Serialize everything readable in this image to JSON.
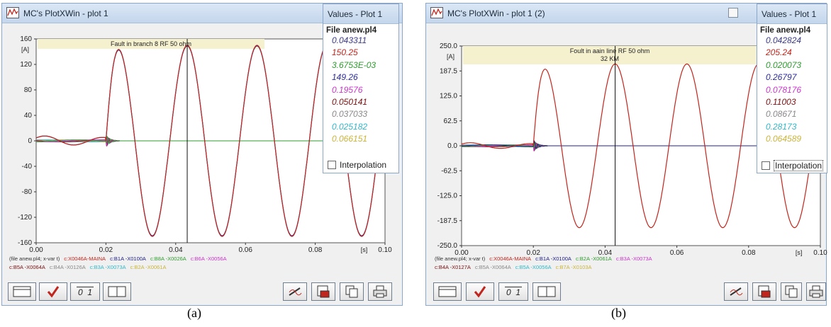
{
  "captions": [
    "(a)",
    "(b)"
  ],
  "colors": {
    "red": "#c0261d",
    "navy": "#20208a",
    "green": "#2f9c2f",
    "purple": "#2b2b9b",
    "magenta": "#cc33cc",
    "maroon": "#7a1010",
    "gray": "#888888",
    "cyan": "#2fb7c8",
    "olive": "#c9b43a"
  },
  "icons": {
    "app": "plot-app-icon",
    "win_button": "restore-box-icon",
    "toolbar": [
      "frame-icon",
      "checkmark-icon",
      "scale-01-icon",
      "split-pane-icon",
      "pen-icon",
      "save-icon",
      "copy-icon",
      "print-icon"
    ]
  },
  "toolbar": {
    "scale_label": "0  1"
  },
  "plots": [
    {
      "window_title": "MC's PlotXWin - plot 1",
      "values_panel": {
        "title": "Values - Plot 1",
        "file": "File anew.pl4",
        "interpolation_label": "Interpolation",
        "values": [
          {
            "text": "0.043311",
            "color": "#3a3a8a"
          },
          {
            "text": "150.25",
            "color": "#c0261d"
          },
          {
            "text": "3.6753E-03",
            "color": "#2f9c2f"
          },
          {
            "text": "149.26",
            "color": "#2b2b9b"
          },
          {
            "text": "0.19576",
            "color": "#cc33cc"
          },
          {
            "text": "0.050141",
            "color": "#7a1010"
          },
          {
            "text": "0.037033",
            "color": "#888888"
          },
          {
            "text": "0.025182",
            "color": "#2fb7c8"
          },
          {
            "text": "0.066151",
            "color": "#c9b43a"
          }
        ]
      },
      "legend_lines": [
        [
          {
            "text": "(file anew.pl4; x-var t)",
            "color": "#333333"
          },
          {
            "text": "c:X0046A-MAINA",
            "color": "#c0261d"
          },
          {
            "text": "c:B1A  -X0100A",
            "color": "#20208a"
          },
          {
            "text": "c:B8A  -X0026A",
            "color": "#2f9c2f"
          },
          {
            "text": "c:B6A  -X0056A",
            "color": "#cc33cc"
          }
        ],
        [
          {
            "text": "c:B5A  -X0064A",
            "color": "#7a1010"
          },
          {
            "text": "c:B4A  -X0126A",
            "color": "#888888"
          },
          {
            "text": "c:B3A  -X0073A",
            "color": "#2fb7c8"
          },
          {
            "text": "c:B2A  -X0061A",
            "color": "#c9b43a"
          }
        ]
      ]
    },
    {
      "window_title": "MC's PlotXWin - plot 1 (2)",
      "values_panel": {
        "title": "Values - Plot 1",
        "file": "File anew.pl4",
        "interpolation_label": "Interpolation",
        "values": [
          {
            "text": "0.042824",
            "color": "#3a3a8a"
          },
          {
            "text": "205.24",
            "color": "#c0261d"
          },
          {
            "text": "0.020073",
            "color": "#2f9c2f"
          },
          {
            "text": "0.26797",
            "color": "#2b2b9b"
          },
          {
            "text": "0.078176",
            "color": "#cc33cc"
          },
          {
            "text": "0.11003",
            "color": "#7a1010"
          },
          {
            "text": "0.08671",
            "color": "#888888"
          },
          {
            "text": "0.28173",
            "color": "#2fb7c8"
          },
          {
            "text": "0.064589",
            "color": "#c9b43a"
          }
        ]
      },
      "legend_lines": [
        [
          {
            "text": "(file anew.pl4; x-var t)",
            "color": "#333333"
          },
          {
            "text": "c:X0046A-MAINA",
            "color": "#c0261d"
          },
          {
            "text": "c:B1A  -X0100A",
            "color": "#20208a"
          },
          {
            "text": "c:B2A  -X0061A",
            "color": "#2f9c2f"
          },
          {
            "text": "c:B3A  -X0073A",
            "color": "#cc33cc"
          }
        ],
        [
          {
            "text": "c:B4A  -X0127A",
            "color": "#7a1010"
          },
          {
            "text": "c:B5A  -X0064A",
            "color": "#888888"
          },
          {
            "text": "c:B5A  -X0056A",
            "color": "#2fb7c8"
          },
          {
            "text": "c:B7A  -X0103A",
            "color": "#c9b43a"
          }
        ]
      ]
    }
  ],
  "chart_data": [
    {
      "type": "line",
      "title": "Fault in branch 8 RF 50 ohm",
      "xlabel": "[s]",
      "ylabel": "[A]",
      "xlim": [
        0,
        0.1
      ],
      "ylim": [
        -160,
        160
      ],
      "xticks": [
        "0.00",
        "0.02",
        "0.04",
        "0.06",
        "0.08",
        "0.10"
      ],
      "yticks": [
        "160",
        "120",
        "80",
        "40",
        "0",
        "-40",
        "-80",
        "-120",
        "-160"
      ],
      "cursor_x": 0.0433,
      "fault_time": 0.02,
      "series": [
        {
          "name": "c:X0046A-MAINA",
          "color": "#c0261d",
          "prefault_amplitude": 8,
          "fault_amplitude": 150,
          "frequency_hz": 50,
          "peak_time": 0.0433
        },
        {
          "name": "c:B1A  -X0100A",
          "color": "#20208a",
          "prefault_amplitude": 8,
          "fault_amplitude": 149,
          "frequency_hz": 50,
          "peak_time": 0.0433
        },
        {
          "name": "c:B8A  -X0026A",
          "color": "#2f9c2f",
          "amplitude": 0
        },
        {
          "name": "c:B6A  -X0056A",
          "color": "#cc33cc",
          "amplitude": 0
        },
        {
          "name": "c:B5A  -X0064A",
          "color": "#7a1010",
          "amplitude": 0
        },
        {
          "name": "c:B4A  -X0126A",
          "color": "#888888",
          "amplitude": 0
        },
        {
          "name": "c:B3A  -X0073A",
          "color": "#2fb7c8",
          "amplitude": 0
        },
        {
          "name": "c:B2A  -X0061A",
          "color": "#c9b43a",
          "amplitude": 0
        }
      ]
    },
    {
      "type": "line",
      "title": "Foult in aain line RF 50 ohm",
      "subtitle": "32 KM",
      "xlabel": "[s]",
      "ylabel": "[A]",
      "xlim": [
        0,
        0.1
      ],
      "ylim": [
        -250,
        250
      ],
      "xticks": [
        "0.00",
        "0.02",
        "0.04",
        "0.06",
        "0.08",
        "0.10"
      ],
      "yticks": [
        "250.0",
        "187.5",
        "125.0",
        "62.5",
        "0.0",
        "-62.5",
        "-125.0",
        "-187.5",
        "-250.0"
      ],
      "cursor_x": 0.0428,
      "fault_time": 0.02,
      "series": [
        {
          "name": "c:X0046A-MAINA",
          "color": "#c0261d",
          "prefault_amplitude": 8,
          "fault_amplitude": 205,
          "frequency_hz": 50,
          "peak_time": 0.0428
        },
        {
          "name": "c:B1A  -X0100A",
          "color": "#20208a",
          "amplitude": 0
        },
        {
          "name": "c:B2A  -X0061A",
          "color": "#2f9c2f",
          "amplitude": 0
        },
        {
          "name": "c:B3A  -X0073A",
          "color": "#cc33cc",
          "amplitude": 0
        },
        {
          "name": "c:B4A  -X0127A",
          "color": "#7a1010",
          "amplitude": 0
        },
        {
          "name": "c:B5A  -X0064A",
          "color": "#888888",
          "amplitude": 0
        },
        {
          "name": "c:B5A  -X0056A",
          "color": "#2fb7c8",
          "amplitude": 0
        },
        {
          "name": "c:B7A  -X0103A",
          "color": "#c9b43a",
          "amplitude": 0
        }
      ]
    }
  ]
}
